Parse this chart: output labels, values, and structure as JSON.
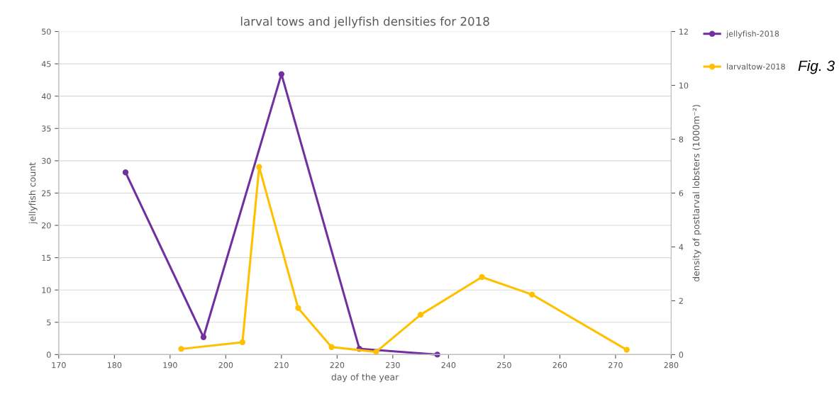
{
  "chart_data": {
    "type": "line",
    "title": "larval tows and jellyfish densities for 2018",
    "xlabel": "day of the year",
    "ylabel": "jellyfish count",
    "y2label": "density of postlarval lobsters (1000m⁻²)",
    "annotations": [
      "Fig. 3"
    ],
    "xlim": [
      170,
      280
    ],
    "xticks": [
      170,
      180,
      190,
      200,
      210,
      220,
      230,
      240,
      250,
      260,
      270,
      280
    ],
    "ylim": [
      0,
      50
    ],
    "yticks": [
      0,
      5,
      10,
      15,
      20,
      25,
      30,
      35,
      40,
      45,
      50
    ],
    "y2lim": [
      0,
      12
    ],
    "y2ticks": [
      0,
      2,
      4,
      6,
      8,
      10,
      12
    ],
    "grid": "y",
    "legend": "right",
    "marker": "circle",
    "line_style": "solid",
    "series": [
      {
        "name": "jellyfish-2018",
        "color": "#7030a0",
        "x": [
          182,
          196,
          210,
          224,
          238
        ],
        "values": [
          28.2,
          2.7,
          43.4,
          0.9,
          0
        ]
      },
      {
        "name": "larvaltow-2018",
        "color": "#ffc000",
        "axis": "y2",
        "x": [
          192,
          203,
          206,
          213,
          219,
          227,
          235,
          246,
          255,
          272
        ],
        "values": [
          0.21,
          0.46,
          6.97,
          1.73,
          0.28,
          0.1,
          1.48,
          2.88,
          2.23,
          0.18
        ]
      }
    ]
  }
}
